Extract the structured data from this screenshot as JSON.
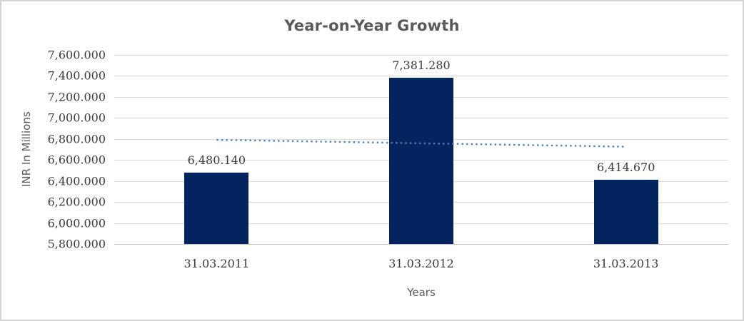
{
  "window": {
    "background": "#FFFFFF",
    "border_color": "#D4D4D4"
  },
  "chart_data": {
    "type": "bar",
    "title": "Year-on-Year Growth",
    "xlabel": "Years",
    "ylabel": "INR In Millions",
    "categories": [
      "31.03.2011",
      "31.03.2012",
      "31.03.2013"
    ],
    "values": [
      6480.14,
      7381.28,
      6414.67
    ],
    "value_labels": [
      "6,480.140",
      "7,381.280",
      "6,414.670"
    ],
    "ylim": [
      5800,
      7600
    ],
    "yticks": [
      5800,
      6000,
      6200,
      6400,
      6600,
      6800,
      7000,
      7200,
      7400,
      7600
    ],
    "ytick_labels": [
      "5,800.000",
      "6,000.000",
      "6,200.000",
      "6,400.000",
      "6,600.000",
      "6,800.000",
      "7,000.000",
      "7,200.000",
      "7,400.000",
      "7,600.000"
    ],
    "grid": true,
    "legend": "none",
    "bar_color": "#03245F",
    "trendline": {
      "type": "linear",
      "style": "dotted",
      "color": "#4E81C2"
    },
    "colors": {
      "gridline": "#D9D9D9",
      "axis_line": "#BFBFBF",
      "title_text": "#595959",
      "tick_text": "#3B3B3B"
    }
  }
}
